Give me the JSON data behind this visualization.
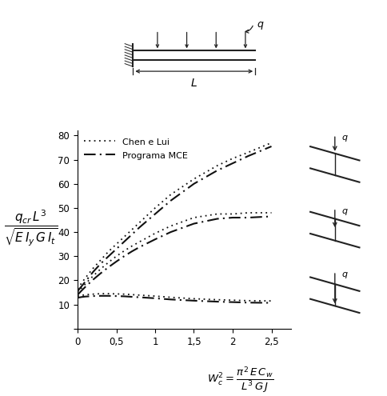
{
  "xlim": [
    0,
    2.75
  ],
  "ylim": [
    0,
    82
  ],
  "xticks": [
    0,
    0.5,
    1.0,
    1.5,
    2.0,
    2.5
  ],
  "xtick_labels": [
    "0",
    "0,5",
    "1",
    "1,5",
    "2",
    "2,5"
  ],
  "yticks": [
    0,
    10,
    20,
    30,
    40,
    50,
    60,
    70,
    80
  ],
  "legend_chen": "Chen e Lui",
  "legend_mce": "Programa MCE",
  "line_color": "#111111",
  "x_data": [
    0.0,
    0.05,
    0.1,
    0.15,
    0.2,
    0.3,
    0.4,
    0.5,
    0.6,
    0.7,
    0.8,
    1.0,
    1.2,
    1.5,
    1.8,
    2.0,
    2.2,
    2.5
  ],
  "curve_top_chen": [
    16.5,
    18.8,
    21.0,
    23.0,
    25.0,
    28.5,
    32.0,
    35.0,
    38.0,
    41.0,
    44.0,
    50.0,
    55.5,
    62.0,
    67.5,
    70.5,
    73.0,
    77.0
  ],
  "curve_top_mce": [
    15.5,
    17.5,
    19.5,
    21.5,
    23.5,
    27.0,
    30.0,
    33.0,
    36.0,
    39.0,
    42.0,
    47.5,
    53.0,
    60.0,
    65.5,
    68.5,
    71.5,
    75.5
  ],
  "curve_mid_chen": [
    15.0,
    16.8,
    18.5,
    20.2,
    21.8,
    24.8,
    27.5,
    30.0,
    32.2,
    34.2,
    36.0,
    39.5,
    42.5,
    46.0,
    47.5,
    47.5,
    48.0,
    48.0
  ],
  "curve_mid_mce": [
    14.0,
    15.7,
    17.3,
    18.8,
    20.3,
    23.0,
    25.5,
    27.8,
    30.0,
    32.0,
    33.8,
    37.0,
    40.0,
    43.5,
    45.5,
    46.0,
    46.0,
    46.5
  ],
  "curve_bot_chen": [
    13.5,
    13.8,
    14.0,
    14.2,
    14.3,
    14.5,
    14.5,
    14.4,
    14.3,
    14.1,
    13.9,
    13.5,
    13.0,
    12.4,
    12.0,
    11.8,
    11.6,
    11.5
  ],
  "curve_bot_mce": [
    12.8,
    13.1,
    13.3,
    13.4,
    13.5,
    13.6,
    13.6,
    13.5,
    13.4,
    13.2,
    13.0,
    12.6,
    12.1,
    11.6,
    11.2,
    11.0,
    10.8,
    10.7
  ]
}
